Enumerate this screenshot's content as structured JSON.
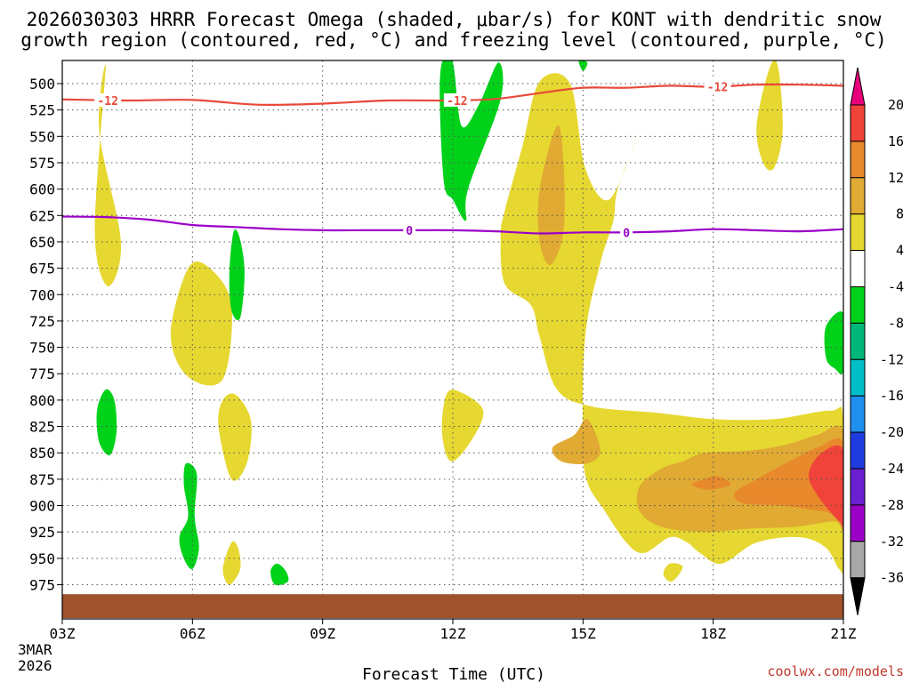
{
  "title": {
    "line1": "2026030303 HRRR Forecast Omega (shaded, μbar/s) for KONT with dendritic snow",
    "line2": "growth region (contoured, red, °C) and freezing level (contoured, purple, °C)"
  },
  "credit": "coolwx.com/models",
  "colors": {
    "up_4_8": "#e6d831",
    "up_8_12": "#e0aa33",
    "up_12_16": "#e8892c",
    "up_16_20": "#f0433a",
    "down_m4_m8": "#00d21a",
    "red_contour": "#e8493a",
    "purple_contour": "#9c00c8",
    "ground": "#a0522d"
  },
  "chart_data": {
    "type": "heatmap",
    "title": "2026030303 HRRR Forecast Omega (shaded, μbar/s) for KONT with dendritic snow growth region (contoured, red, °C) and freezing level (contoured, purple, °C)",
    "xlabel": "Forecast Time (UTC)",
    "ylabel": "",
    "x_range_hours": [
      0,
      18
    ],
    "x_ticks": [
      {
        "hour": 0,
        "label": "03Z"
      },
      {
        "hour": 3,
        "label": "06Z"
      },
      {
        "hour": 6,
        "label": "09Z"
      },
      {
        "hour": 9,
        "label": "12Z"
      },
      {
        "hour": 12,
        "label": "15Z"
      },
      {
        "hour": 15,
        "label": "18Z"
      },
      {
        "hour": 18,
        "label": "21Z"
      }
    ],
    "x_date_label_line1": "3MAR",
    "x_date_label_line2": "2026",
    "y_range_mb": [
      990,
      480
    ],
    "y_ticks": [
      500,
      525,
      550,
      575,
      600,
      625,
      650,
      675,
      700,
      725,
      750,
      775,
      800,
      825,
      850,
      875,
      900,
      925,
      950,
      975
    ],
    "colorbar": {
      "labels": [
        "20",
        "16",
        "12",
        "8",
        "4",
        "-4",
        "-8",
        "-12",
        "-16",
        "-20",
        "-24",
        "-28",
        "-32",
        "-36"
      ],
      "colors": [
        "#e8007a",
        "#f0433a",
        "#e8892c",
        "#e0aa33",
        "#e6d831",
        "#ffffff",
        "#00d21a",
        "#00b87a",
        "#00bfc8",
        "#1f8ff0",
        "#1f3ce0",
        "#6a1fd0",
        "#9c00c8",
        "#a8a8a8",
        "#000000"
      ]
    },
    "contours": {
      "dendritic_red": {
        "label": "-12",
        "points": [
          [
            0,
            515
          ],
          [
            1.5,
            516
          ],
          [
            3,
            515.5
          ],
          [
            4.5,
            520
          ],
          [
            6,
            519
          ],
          [
            7.5,
            516
          ],
          [
            9,
            516
          ],
          [
            10,
            514.5
          ],
          [
            11,
            509
          ],
          [
            12,
            504
          ],
          [
            13,
            504
          ],
          [
            14,
            502
          ],
          [
            15,
            503
          ],
          [
            16,
            501
          ],
          [
            17,
            501
          ],
          [
            18,
            502
          ]
        ]
      },
      "freezing_purple": {
        "label": "0",
        "points": [
          [
            0,
            626
          ],
          [
            1,
            626.5
          ],
          [
            2,
            629
          ],
          [
            3,
            634
          ],
          [
            4,
            636
          ],
          [
            5,
            638
          ],
          [
            6,
            639
          ],
          [
            7,
            639
          ],
          [
            8,
            639
          ],
          [
            9,
            639
          ],
          [
            10,
            640
          ],
          [
            11,
            642
          ],
          [
            12,
            641
          ],
          [
            13,
            641
          ],
          [
            14,
            640
          ],
          [
            15,
            638
          ],
          [
            16,
            639
          ],
          [
            17,
            640
          ],
          [
            18,
            638
          ]
        ]
      },
      "labels": [
        {
          "text": "-12",
          "hour": 1.05,
          "mb": 516,
          "color": "red"
        },
        {
          "text": "-12",
          "hour": 9.1,
          "mb": 516,
          "color": "red"
        },
        {
          "text": "-12",
          "hour": 15.1,
          "mb": 503,
          "color": "red"
        },
        {
          "text": "0",
          "hour": 8.0,
          "mb": 639,
          "color": "purple"
        },
        {
          "text": "0",
          "hour": 13.0,
          "mb": 641,
          "color": "purple"
        }
      ]
    },
    "regions": [
      {
        "level": "4 to 8",
        "hours": [
          1.0,
          0.85,
          1.35,
          1.05,
          0.75
        ],
        "mb": [
          485,
          545,
          650,
          692,
          640
        ]
      },
      {
        "level": "4 to 8",
        "hours": [
          2.9,
          2.5,
          2.9,
          3.7,
          3.9,
          3.4
        ],
        "mb": [
          675,
          738,
          778,
          780,
          710,
          675
        ]
      },
      {
        "level": "4 to 8",
        "hours": [
          3.7,
          3.6,
          3.9,
          4.25,
          4.35,
          4.0
        ],
        "mb": [
          800,
          825,
          875,
          860,
          820,
          795
        ]
      },
      {
        "level": "4 to 8",
        "hours": [
          3.9,
          3.7,
          3.85,
          4.1,
          4.05
        ],
        "mb": [
          935,
          960,
          975,
          960,
          940
        ]
      },
      {
        "level": "4 to 8",
        "hours": [
          8.85,
          8.75,
          8.95,
          9.4,
          9.7,
          9.15
        ],
        "mb": [
          795,
          830,
          858,
          840,
          810,
          792
        ]
      },
      {
        "level": "4 to 8",
        "hours": [
          11.0,
          10.6,
          10.2,
          10.1,
          10.2,
          10.8,
          11.0,
          11.4,
          12.2,
          13.7,
          15.0,
          16.4,
          17.7,
          18.0,
          18.0,
          17.9,
          17.6,
          17.0,
          16.0,
          15.2,
          14.7,
          14.4,
          14.0,
          13.4,
          13.0,
          12.5,
          12.1,
          12.0,
          12.05,
          12.4,
          12.7,
          12.8,
          13.3,
          13.2,
          12.6,
          12.05,
          11.7
        ],
        "mb": [
          498,
          560,
          620,
          645,
          690,
          710,
          740,
          790,
          806,
          812,
          818,
          818,
          810,
          820,
          950,
          960,
          940,
          930,
          935,
          955,
          945,
          935,
          930,
          945,
          935,
          905,
          878,
          840,
          740,
          670,
          630,
          600,
          545,
          555,
          610,
          580,
          500
        ]
      },
      {
        "level": "4 to 8",
        "hours": [
          16.3,
          16.0,
          16.15,
          16.4,
          16.6,
          16.5
        ],
        "mb": [
          485,
          540,
          575,
          580,
          545,
          485
        ]
      },
      {
        "level": "4 to 8",
        "hours": [
          14.0,
          13.85,
          14.05,
          14.3
        ],
        "mb": [
          955,
          965,
          972,
          958
        ]
      },
      {
        "level": "8 to 12",
        "hours": [
          11.4,
          11.0,
          11.0,
          11.25,
          11.55,
          11.55
        ],
        "mb": [
          540,
          600,
          650,
          672,
          640,
          575
        ]
      },
      {
        "level": "8 to 12",
        "hours": [
          11.8,
          11.3,
          11.5,
          12.1,
          12.4,
          12.1
        ],
        "mb": [
          833,
          845,
          858,
          860,
          848,
          818
        ]
      },
      {
        "level": "8 to 12",
        "hours": [
          13.8,
          13.3,
          13.3,
          13.8,
          14.8,
          15.8,
          16.9,
          17.8,
          18.0,
          18.0,
          17.4,
          16.7,
          15.8,
          14.8,
          14.3
        ],
        "mb": [
          865,
          882,
          905,
          920,
          925,
          922,
          920,
          915,
          920,
          830,
          833,
          842,
          848,
          850,
          858
        ]
      },
      {
        "level": "12 to 16",
        "hours": [
          14.8,
          14.5,
          14.9,
          15.4,
          15.1
        ],
        "mb": [
          875,
          880,
          885,
          880,
          872
        ]
      },
      {
        "level": "12 to 16",
        "hours": [
          16.0,
          15.5,
          15.7,
          16.6,
          17.5,
          18.0,
          18.0,
          17.4,
          16.9
        ],
        "mb": [
          875,
          888,
          898,
          900,
          905,
          905,
          840,
          845,
          855
        ]
      },
      {
        "level": "16 to 20",
        "hours": [
          17.5,
          17.2,
          17.4,
          17.9,
          18.0,
          18.0
        ],
        "mb": [
          850,
          870,
          890,
          915,
          915,
          848
        ]
      },
      {
        "level": "-4 to -8",
        "hours": [
          8.75,
          8.7,
          8.8,
          9.0,
          9.3,
          9.35,
          10.1,
          10.05,
          9.6,
          9.2,
          9.0
        ],
        "mb": [
          480,
          520,
          595,
          610,
          630,
          600,
          515,
          480,
          520,
          540,
          480
        ]
      },
      {
        "level": "-4 to -8",
        "hours": [
          11.9,
          12.0,
          12.1
        ],
        "mb": [
          478,
          488,
          480
        ]
      },
      {
        "level": "-4 to -8",
        "hours": [
          3.95,
          3.85,
          3.9,
          4.1,
          4.2,
          4.1
        ],
        "mb": [
          640,
          680,
          715,
          722,
          680,
          648
        ]
      },
      {
        "level": "-4 to -8",
        "hours": [
          1.0,
          0.8,
          0.85,
          1.1,
          1.25,
          1.2
        ],
        "mb": [
          790,
          810,
          840,
          852,
          830,
          800
        ]
      },
      {
        "level": "-4 to -8",
        "hours": [
          2.85,
          2.8,
          2.9,
          2.7,
          2.8,
          3.0,
          3.15,
          3.05,
          3.1
        ],
        "mb": [
          860,
          880,
          910,
          930,
          950,
          960,
          940,
          910,
          870
        ]
      },
      {
        "level": "-4 to -8",
        "hours": [
          4.8,
          4.9,
          5.2,
          5.15,
          4.95
        ],
        "mb": [
          962,
          975,
          972,
          962,
          955
        ]
      },
      {
        "level": "-4 to -8",
        "hours": [
          18.0,
          17.6,
          17.6,
          17.8,
          18.0
        ],
        "mb": [
          718,
          730,
          760,
          770,
          772
        ]
      }
    ],
    "ground": {
      "level_mb": 984,
      "color": "brown"
    }
  }
}
